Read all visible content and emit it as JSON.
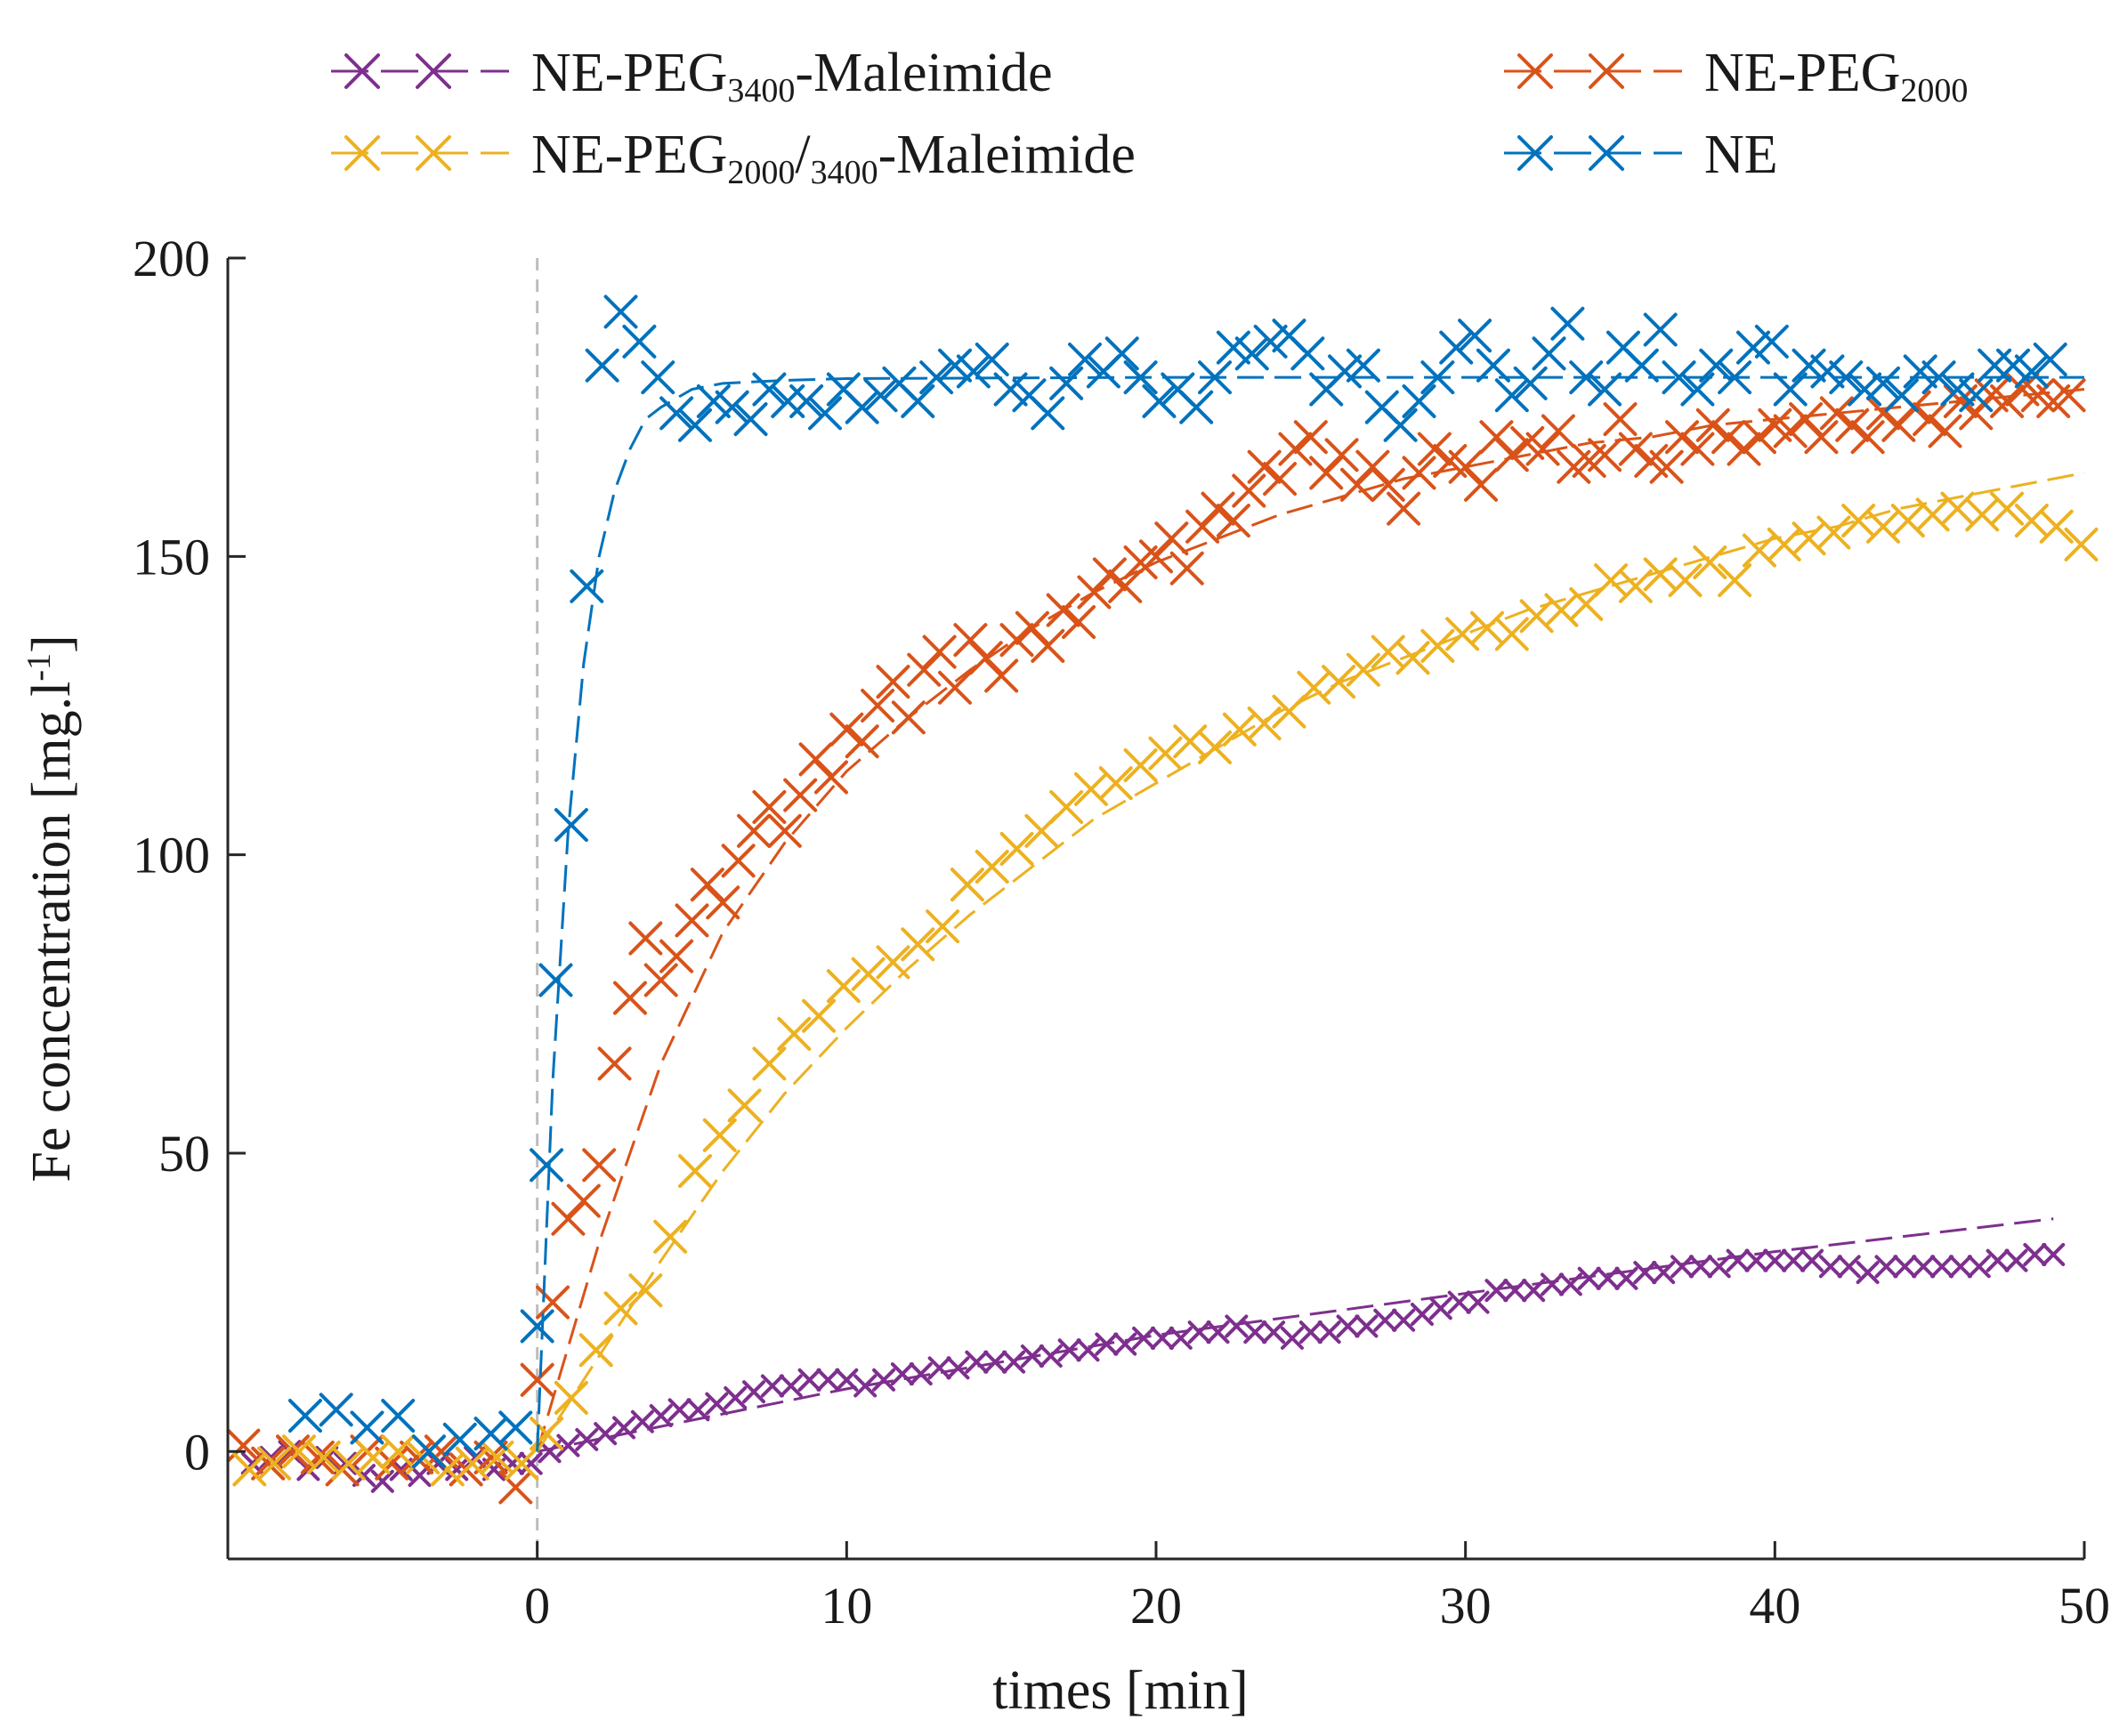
{
  "chart_data": {
    "type": "scatter",
    "xlabel": "times [min]",
    "ylabel": "Fe concentration [mg.l",
    "ylabel_sup": "-1",
    "ylabel_close": "]",
    "xlim": [
      -10,
      50
    ],
    "ylim": [
      -18,
      200
    ],
    "xticks": [
      0,
      10,
      20,
      30,
      40,
      50
    ],
    "yticks": [
      0,
      50,
      100,
      150,
      200
    ],
    "xtick_labels": [
      "0",
      "10",
      "20",
      "30",
      "40",
      "50"
    ],
    "ytick_labels": [
      "0",
      "50",
      "100",
      "150",
      "200"
    ],
    "grid": false,
    "vertical_reference_line_x": 0,
    "legend_position": "top",
    "series": [
      {
        "name": "NE-PEG3400-Maleimide",
        "legend_parts": [
          "NE-PEG",
          "3400",
          "-Maleimide"
        ],
        "color": "#7E2F8E",
        "x": [
          -9.2,
          -8.6,
          -8,
          -7.4,
          -6.8,
          -6.2,
          -5.6,
          -5,
          -4.4,
          -3.8,
          -3.2,
          -2.6,
          -2,
          -1.4,
          -0.8,
          -0.2,
          0.4,
          1,
          1.6,
          2.2,
          2.8,
          3.4,
          4,
          4.6,
          5.2,
          5.8,
          6.4,
          7,
          7.6,
          8.2,
          8.8,
          9.4,
          10,
          10.6,
          11.2,
          11.8,
          12.4,
          13,
          13.6,
          14.2,
          14.8,
          15.4,
          16,
          16.6,
          17.2,
          17.8,
          18.4,
          19,
          19.6,
          20.2,
          20.8,
          21.4,
          22,
          22.6,
          23.2,
          23.8,
          24.4,
          25,
          25.6,
          26.2,
          26.8,
          27.4,
          28,
          28.6,
          29.2,
          29.8,
          30.4,
          31,
          31.6,
          32.2,
          32.8,
          33.4,
          34,
          34.6,
          35.2,
          35.8,
          36.4,
          37,
          37.6,
          38.2,
          38.8,
          39.4,
          40,
          40.6,
          41.2,
          41.8,
          42.4,
          43,
          43.6,
          44.2,
          44.8,
          45.4,
          46,
          46.6,
          47.2,
          47.8,
          48.4,
          49
        ],
        "y": [
          -2,
          -1,
          0,
          -3,
          -1,
          -2,
          -4,
          -5,
          -3,
          -4,
          -2,
          -3,
          -1,
          -3,
          -2,
          -2,
          0,
          1,
          2,
          3,
          4,
          5,
          6,
          7,
          7,
          8,
          9,
          10,
          11,
          11,
          12,
          12,
          12,
          11,
          12,
          13,
          13,
          14,
          14,
          15,
          15,
          15,
          16,
          16,
          17,
          17,
          18,
          18,
          19,
          19,
          19,
          20,
          20,
          21,
          20,
          20,
          19,
          20,
          20,
          21,
          21,
          22,
          22,
          23,
          24,
          25,
          25,
          27,
          27,
          27,
          28,
          28,
          29,
          29,
          29,
          30,
          30,
          31,
          31,
          31,
          32,
          32,
          32,
          32,
          32,
          31,
          31,
          30,
          31,
          31,
          31,
          31,
          31,
          31,
          32,
          32,
          33,
          33
        ],
        "fit_x": [
          0,
          10,
          20,
          30,
          40,
          49
        ],
        "fit_y": [
          0,
          10.5,
          19.5,
          26.5,
          33.5,
          39
        ]
      },
      {
        "name": "NE-PEG2000",
        "legend_parts": [
          "NE-PEG",
          "2000",
          ""
        ],
        "color": "#D95319",
        "x": [
          -9.5,
          -8.7,
          -7.9,
          -7.1,
          -6.3,
          -5.5,
          -4.7,
          -3.9,
          -3.1,
          -2.3,
          -1.5,
          -0.7,
          0,
          0.5,
          1,
          1.5,
          2,
          2.5,
          3,
          3.5,
          4,
          4.5,
          5,
          5.5,
          6,
          6.5,
          7,
          7.5,
          8,
          8.5,
          9,
          9.5,
          10,
          10.5,
          11,
          11.5,
          12,
          12.5,
          13,
          13.5,
          14,
          14.5,
          15,
          15.5,
          16,
          16.5,
          17,
          17.5,
          18,
          18.5,
          19,
          19.5,
          20,
          20.5,
          21,
          21.5,
          22,
          22.5,
          23,
          23.5,
          24,
          24.5,
          25,
          25.5,
          26,
          26.5,
          27,
          27.5,
          28,
          28.5,
          29,
          29.5,
          30,
          30.5,
          31,
          31.5,
          32,
          32.5,
          33,
          33.5,
          34,
          34.5,
          35,
          35.5,
          36,
          36.5,
          37,
          37.5,
          38,
          38.5,
          39,
          39.5,
          40,
          40.5,
          41,
          41.5,
          42,
          42.5,
          43,
          43.5,
          44,
          44.5,
          45,
          45.5,
          46,
          46.5,
          47,
          47.5,
          48,
          48.5,
          49,
          49.5
        ],
        "y": [
          1,
          -2,
          0,
          -1,
          -3,
          0,
          -2,
          -1,
          0,
          -3,
          -1,
          -6,
          12,
          25,
          39,
          42,
          48,
          65,
          76,
          86,
          79,
          83,
          89,
          95,
          92,
          99,
          104,
          108,
          104,
          110,
          116,
          113,
          121,
          119,
          125,
          129,
          123,
          131,
          134,
          128,
          136,
          133,
          130,
          136,
          138,
          135,
          141,
          139,
          144,
          147,
          145,
          149,
          150,
          153,
          148,
          155,
          158,
          156,
          161,
          165,
          163,
          168,
          170,
          164,
          167,
          162,
          165,
          162,
          158,
          164,
          168,
          166,
          165,
          162,
          170,
          167,
          169,
          168,
          171,
          165,
          166,
          167,
          173,
          168,
          166,
          165,
          170,
          168,
          172,
          170,
          168,
          170,
          172,
          171,
          173,
          170,
          174,
          172,
          170,
          174,
          172,
          175,
          173,
          171,
          176,
          174,
          177,
          176,
          178,
          177,
          176,
          177
        ],
        "fit_x": [
          0,
          2,
          4,
          6,
          8,
          10,
          12,
          14,
          16,
          18,
          20,
          22,
          24,
          26,
          28,
          30,
          32,
          34,
          36,
          38,
          40,
          42,
          44,
          46,
          48,
          50
        ],
        "fit_y": [
          0,
          35,
          65,
          87,
          102,
          114,
          123,
          131,
          138,
          144,
          149,
          153,
          157,
          160,
          163,
          165,
          167,
          169,
          170,
          172,
          173,
          174,
          175,
          176,
          177,
          178
        ]
      },
      {
        "name": "NE-PEG2000/3400-Maleimide",
        "legend_parts": [
          "NE-PEG",
          "2000",
          "/",
          "3400",
          "-Maleimide"
        ],
        "color": "#EDB120",
        "x": [
          -9.3,
          -8.5,
          -7.7,
          -6.9,
          -6.1,
          -5.3,
          -4.5,
          -3.7,
          -2.9,
          -2.1,
          -1.3,
          -0.5,
          0.3,
          1.1,
          1.9,
          2.7,
          3.5,
          4.3,
          5.1,
          5.9,
          6.7,
          7.5,
          8.3,
          9.1,
          9.9,
          10.7,
          11.5,
          12.3,
          13.1,
          13.9,
          14.7,
          15.5,
          16.3,
          17.1,
          17.9,
          18.7,
          19.5,
          20.3,
          21.1,
          21.9,
          22.7,
          23.5,
          24.3,
          25.1,
          25.9,
          26.7,
          27.5,
          28.3,
          29.1,
          29.9,
          30.7,
          31.5,
          32.3,
          33.1,
          33.9,
          34.7,
          35.5,
          36.3,
          37.1,
          37.9,
          38.7,
          39.5,
          40.3,
          41.1,
          41.9,
          42.7,
          43.5,
          44.3,
          45.1,
          45.9,
          46.7,
          47.5,
          48.3,
          49.1,
          49.9
        ],
        "y": [
          -3,
          -2,
          0,
          -1,
          -2,
          -1,
          0,
          -1,
          -3,
          -2,
          -1,
          -2,
          3,
          9,
          17,
          24,
          27,
          36,
          47,
          53,
          58,
          65,
          70,
          73,
          78,
          80,
          82,
          85,
          88,
          95,
          98,
          101,
          104,
          108,
          111,
          112,
          115,
          117,
          119,
          118,
          121,
          122,
          124,
          128,
          129,
          131,
          134,
          133,
          135,
          137,
          138,
          137,
          140,
          141,
          142,
          146,
          145,
          147,
          146,
          149,
          146,
          151,
          152,
          153,
          154,
          156,
          155,
          156,
          157,
          158,
          157,
          158,
          156,
          155,
          152
        ],
        "fit_x": [
          0,
          2,
          4,
          6,
          8,
          10,
          12,
          14,
          16,
          18,
          20,
          22,
          24,
          26,
          28,
          30,
          32,
          34,
          36,
          38,
          40,
          42,
          44,
          46,
          48,
          50
        ],
        "fit_y": [
          0,
          16,
          32,
          47,
          60,
          71,
          81,
          90,
          98,
          106,
          112,
          118,
          124,
          129,
          133,
          137,
          141,
          144,
          147,
          150,
          153,
          155,
          158,
          160,
          162,
          164
        ]
      },
      {
        "name": "NE",
        "legend_parts": [
          "NE",
          "",
          ""
        ],
        "color": "#0072BD",
        "x": [
          -7.5,
          -6.5,
          -5.5,
          -4.5,
          -3.5,
          -2.5,
          -1.5,
          -0.7,
          0,
          0.3,
          0.6,
          1.1,
          1.6,
          2.1,
          2.7,
          3.3,
          3.9,
          4.5,
          5.1,
          5.7,
          6.3,
          6.9,
          7.5,
          8.1,
          8.7,
          9.3,
          9.9,
          10.5,
          11.1,
          11.7,
          12.3,
          12.9,
          13.5,
          14.1,
          14.7,
          15.3,
          15.9,
          16.5,
          17.1,
          17.7,
          18.3,
          18.9,
          19.5,
          20.1,
          20.7,
          21.3,
          21.9,
          22.5,
          23.1,
          23.7,
          24.3,
          24.9,
          25.5,
          26.1,
          26.7,
          27.3,
          27.9,
          28.5,
          29.1,
          29.7,
          30.3,
          30.9,
          31.5,
          32.1,
          32.7,
          33.3,
          33.9,
          34.5,
          35.1,
          35.7,
          36.3,
          36.9,
          37.5,
          38.1,
          38.7,
          39.3,
          39.9,
          40.5,
          41.1,
          41.7,
          42.3,
          42.9,
          43.5,
          44.1,
          44.7,
          45.3,
          45.9,
          46.5,
          47.1,
          47.7,
          48.3,
          48.9
        ],
        "y": [
          6,
          7,
          4,
          6,
          0,
          2,
          3,
          4,
          21,
          48,
          79,
          105,
          145,
          182,
          191,
          186,
          180,
          174,
          172,
          176,
          175,
          173,
          178,
          176,
          176,
          174,
          178,
          175,
          177,
          179,
          176,
          180,
          182,
          181,
          183,
          178,
          177,
          174,
          179,
          183,
          181,
          184,
          180,
          176,
          178,
          175,
          180,
          185,
          184,
          186,
          187,
          184,
          178,
          181,
          182,
          175,
          172,
          176,
          180,
          185,
          187,
          182,
          177,
          179,
          184,
          189,
          180,
          178,
          185,
          182,
          188,
          180,
          178,
          182,
          180,
          185,
          186,
          178,
          182,
          181,
          180,
          178,
          179,
          177,
          181,
          180,
          178,
          177,
          182,
          182,
          181,
          183
        ],
        "fit_x": [
          0,
          0.5,
          1,
          1.5,
          2,
          2.5,
          3,
          3.5,
          4,
          5,
          6,
          8,
          10,
          20,
          30,
          40,
          50
        ],
        "fit_y": [
          0,
          62,
          104,
          132,
          150,
          161,
          168,
          173,
          175,
          178,
          179,
          179.5,
          179.8,
          180,
          180,
          180,
          180
        ]
      }
    ]
  }
}
